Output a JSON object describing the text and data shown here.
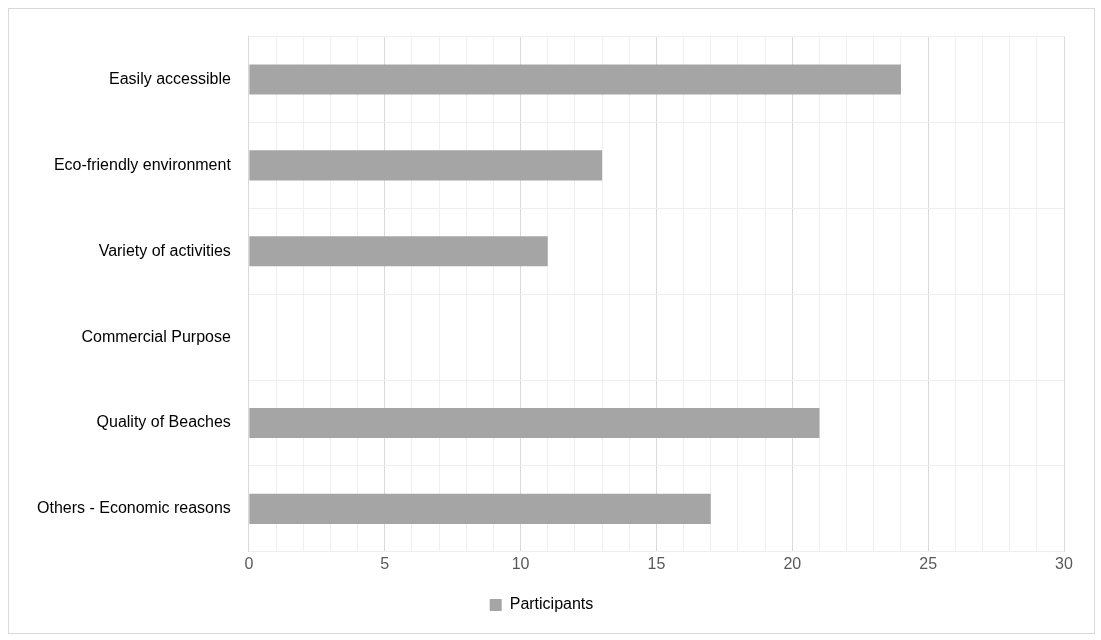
{
  "chart_data": {
    "type": "bar",
    "orientation": "horizontal",
    "categories": [
      "Easily accessible",
      "Eco-friendly environment",
      "Variety of activities",
      "Commercial Purpose",
      "Quality of Beaches",
      "Others - Economic reasons"
    ],
    "series": [
      {
        "name": "Participants",
        "color": "#a5a5a5",
        "values": [
          24,
          13,
          11,
          0,
          21,
          17
        ]
      }
    ],
    "xlim": [
      0,
      30
    ],
    "xticks": [
      0,
      {
        "value": 1,
        "label": null
      },
      {
        "value": 2,
        "label": null
      },
      {
        "value": 3,
        "label": null
      },
      {
        "value": 4,
        "label": null
      },
      5,
      {
        "value": 6,
        "label": null
      },
      {
        "value": 7,
        "label": null
      },
      {
        "value": 8,
        "label": null
      },
      {
        "value": 9,
        "label": null
      },
      10,
      {
        "value": 11,
        "label": null
      },
      {
        "value": 12,
        "label": null
      },
      {
        "value": 13,
        "label": null
      },
      {
        "value": 14,
        "label": null
      },
      15,
      {
        "value": 16,
        "label": null
      },
      {
        "value": 17,
        "label": null
      },
      {
        "value": 18,
        "label": null
      },
      {
        "value": 19,
        "label": null
      },
      20,
      {
        "value": 21,
        "label": null
      },
      {
        "value": 22,
        "label": null
      },
      {
        "value": 23,
        "label": null
      },
      {
        "value": 24,
        "label": null
      },
      25,
      {
        "value": 26,
        "label": null
      },
      {
        "value": 27,
        "label": null
      },
      {
        "value": 28,
        "label": null
      },
      {
        "value": 29,
        "label": null
      },
      30
    ],
    "grid": true,
    "legend": "bottom"
  }
}
